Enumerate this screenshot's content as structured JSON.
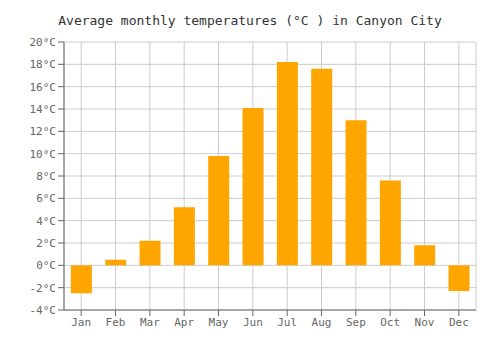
{
  "chart_data": {
    "type": "bar",
    "title": "Average monthly temperatures (°C ) in Canyon City",
    "categories": [
      "Jan",
      "Feb",
      "Mar",
      "Apr",
      "May",
      "Jun",
      "Jul",
      "Aug",
      "Sep",
      "Oct",
      "Nov",
      "Dec"
    ],
    "values": [
      -2.5,
      0.5,
      2.2,
      5.2,
      9.8,
      14.1,
      18.2,
      17.6,
      13.0,
      7.6,
      1.8,
      -2.3
    ],
    "color": "#FFA500",
    "ylim": [
      -4,
      20
    ],
    "yticks": [
      {
        "value": -4,
        "label": "-4°C"
      },
      {
        "value": -2,
        "label": "-2°C"
      },
      {
        "value": 0,
        "label": "0°C"
      },
      {
        "value": 2,
        "label": "2°C"
      },
      {
        "value": 4,
        "label": "4°C"
      },
      {
        "value": 6,
        "label": "6°C"
      },
      {
        "value": 8,
        "label": "8°C"
      },
      {
        "value": 10,
        "label": "10°C"
      },
      {
        "value": 12,
        "label": "12°C"
      },
      {
        "value": 14,
        "label": "14°C"
      },
      {
        "value": 16,
        "label": "16°C"
      },
      {
        "value": 18,
        "label": "18°C"
      },
      {
        "value": 20,
        "label": "20°C"
      }
    ],
    "grid": true
  }
}
